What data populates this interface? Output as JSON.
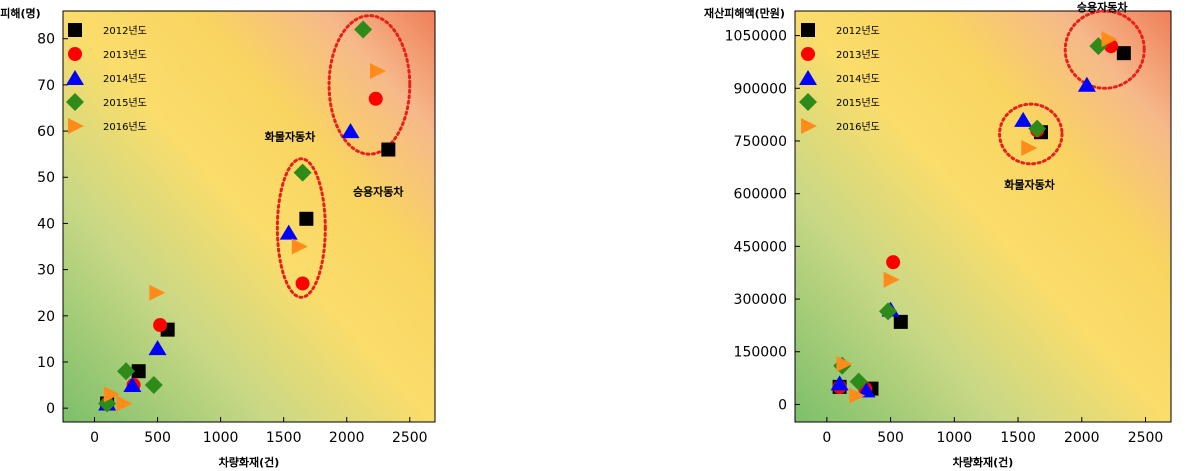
{
  "chart_data": [
    {
      "type": "scatter",
      "ylabel": "인명피해(명)",
      "xlabel": "차량화재(건)",
      "xlim": [
        -250,
        2700
      ],
      "ylim": [
        -3,
        86
      ],
      "x_ticks": [
        0,
        500,
        1000,
        1500,
        2000,
        2500
      ],
      "y_ticks": [
        0,
        10,
        20,
        30,
        40,
        50,
        60,
        70,
        80
      ],
      "x_tick_labels": [
        "0",
        "500",
        "1000",
        "1500",
        "2000",
        "2500"
      ],
      "y_tick_labels": [
        "0",
        "10",
        "20",
        "30",
        "40",
        "50",
        "60",
        "70",
        "80"
      ],
      "legend_position": "top-left",
      "grid": false,
      "background": "diagonal gradient green (bottom-left) to yellow to orange-red (top-right)",
      "series": [
        {
          "name": "2012년도",
          "marker": "square",
          "color": "#000000",
          "points": [
            [
              100,
              1
            ],
            [
              350,
              8
            ],
            [
              580,
              17
            ],
            [
              1680,
              41
            ],
            [
              2330,
              56
            ]
          ]
        },
        {
          "name": "2013년도",
          "marker": "circle",
          "color": "#ff0000",
          "points": [
            [
              100,
              1
            ],
            [
              310,
              5
            ],
            [
              520,
              18
            ],
            [
              1650,
              27
            ],
            [
              2230,
              67
            ]
          ]
        },
        {
          "name": "2014년도",
          "marker": "triangle-up",
          "color": "#0000ff",
          "points": [
            [
              100,
              1
            ],
            [
              300,
              5
            ],
            [
              500,
              13
            ],
            [
              1540,
              38
            ],
            [
              2030,
              60
            ]
          ]
        },
        {
          "name": "2015년도",
          "marker": "diamond",
          "color": "#2e8b1a",
          "points": [
            [
              100,
              1
            ],
            [
              250,
              8
            ],
            [
              470,
              5
            ],
            [
              1650,
              51
            ],
            [
              2130,
              82
            ]
          ]
        },
        {
          "name": "2016년도",
          "marker": "triangle-right",
          "color": "#ff8c1a",
          "points": [
            [
              130,
              3
            ],
            [
              230,
              1
            ],
            [
              490,
              25
            ],
            [
              1620,
              35
            ],
            [
              2240,
              73
            ]
          ]
        }
      ],
      "annotations": [
        {
          "text": "화물자동차",
          "x": 1550,
          "y": 58
        },
        {
          "text": "승용자동차",
          "x": 2250,
          "y": 46
        }
      ],
      "highlight_ellipses": [
        {
          "label": "화물자동차",
          "cx": 1640,
          "cy": 39,
          "rx": 190,
          "ry": 15
        },
        {
          "label": "승용자동차",
          "cx": 2180,
          "cy": 70,
          "rx": 320,
          "ry": 15
        }
      ]
    },
    {
      "type": "scatter",
      "ylabel": "재산피해액(만원)",
      "xlabel": "차량화재(건)",
      "xlim": [
        -250,
        2700
      ],
      "ylim": [
        -50000,
        1120000
      ],
      "x_ticks": [
        0,
        500,
        1000,
        1500,
        2000,
        2500
      ],
      "y_ticks": [
        0,
        150000,
        300000,
        450000,
        600000,
        750000,
        900000,
        1050000
      ],
      "x_tick_labels": [
        "0",
        "500",
        "1000",
        "1500",
        "2000",
        "2500"
      ],
      "y_tick_labels": [
        "0",
        "150000",
        "300000",
        "450000",
        "600000",
        "750000",
        "900000",
        "1050000"
      ],
      "legend_position": "top-left",
      "grid": false,
      "background": "diagonal gradient green (bottom-left) to yellow to orange-red (top-right)",
      "series": [
        {
          "name": "2012년도",
          "marker": "square",
          "color": "#000000",
          "points": [
            [
              100,
              50000
            ],
            [
              350,
              45000
            ],
            [
              580,
              235000
            ],
            [
              1680,
              775000
            ],
            [
              2330,
              1000000
            ]
          ]
        },
        {
          "name": "2013년도",
          "marker": "circle",
          "color": "#ff0000",
          "points": [
            [
              100,
              50000
            ],
            [
              300,
              45000
            ],
            [
              520,
              405000
            ],
            [
              1650,
              780000
            ],
            [
              2230,
              1020000
            ]
          ]
        },
        {
          "name": "2014년도",
          "marker": "triangle-up",
          "color": "#0000ff",
          "points": [
            [
              100,
              60000
            ],
            [
              310,
              40000
            ],
            [
              500,
              270000
            ],
            [
              1540,
              810000
            ],
            [
              2040,
              910000
            ]
          ]
        },
        {
          "name": "2015년도",
          "marker": "diamond",
          "color": "#2e8b1a",
          "points": [
            [
              120,
              110000
            ],
            [
              250,
              65000
            ],
            [
              480,
              265000
            ],
            [
              1650,
              785000
            ],
            [
              2130,
              1020000
            ]
          ]
        },
        {
          "name": "2016년도",
          "marker": "triangle-right",
          "color": "#ff8c1a",
          "points": [
            [
              130,
              115000
            ],
            [
              230,
              25000
            ],
            [
              500,
              355000
            ],
            [
              1580,
              730000
            ],
            [
              2210,
              1040000
            ]
          ]
        }
      ],
      "annotations": [
        {
          "text": "승용자동차",
          "x": 2160,
          "y": 1120000
        },
        {
          "text": "화물자동차",
          "x": 1590,
          "y": 615000
        }
      ],
      "highlight_ellipses": [
        {
          "label": "화물자동차",
          "cx": 1600,
          "cy": 770000,
          "rx": 245,
          "ry": 85000
        },
        {
          "label": "승용자동차",
          "cx": 2180,
          "cy": 1010000,
          "rx": 310,
          "ry": 110000
        }
      ]
    }
  ]
}
